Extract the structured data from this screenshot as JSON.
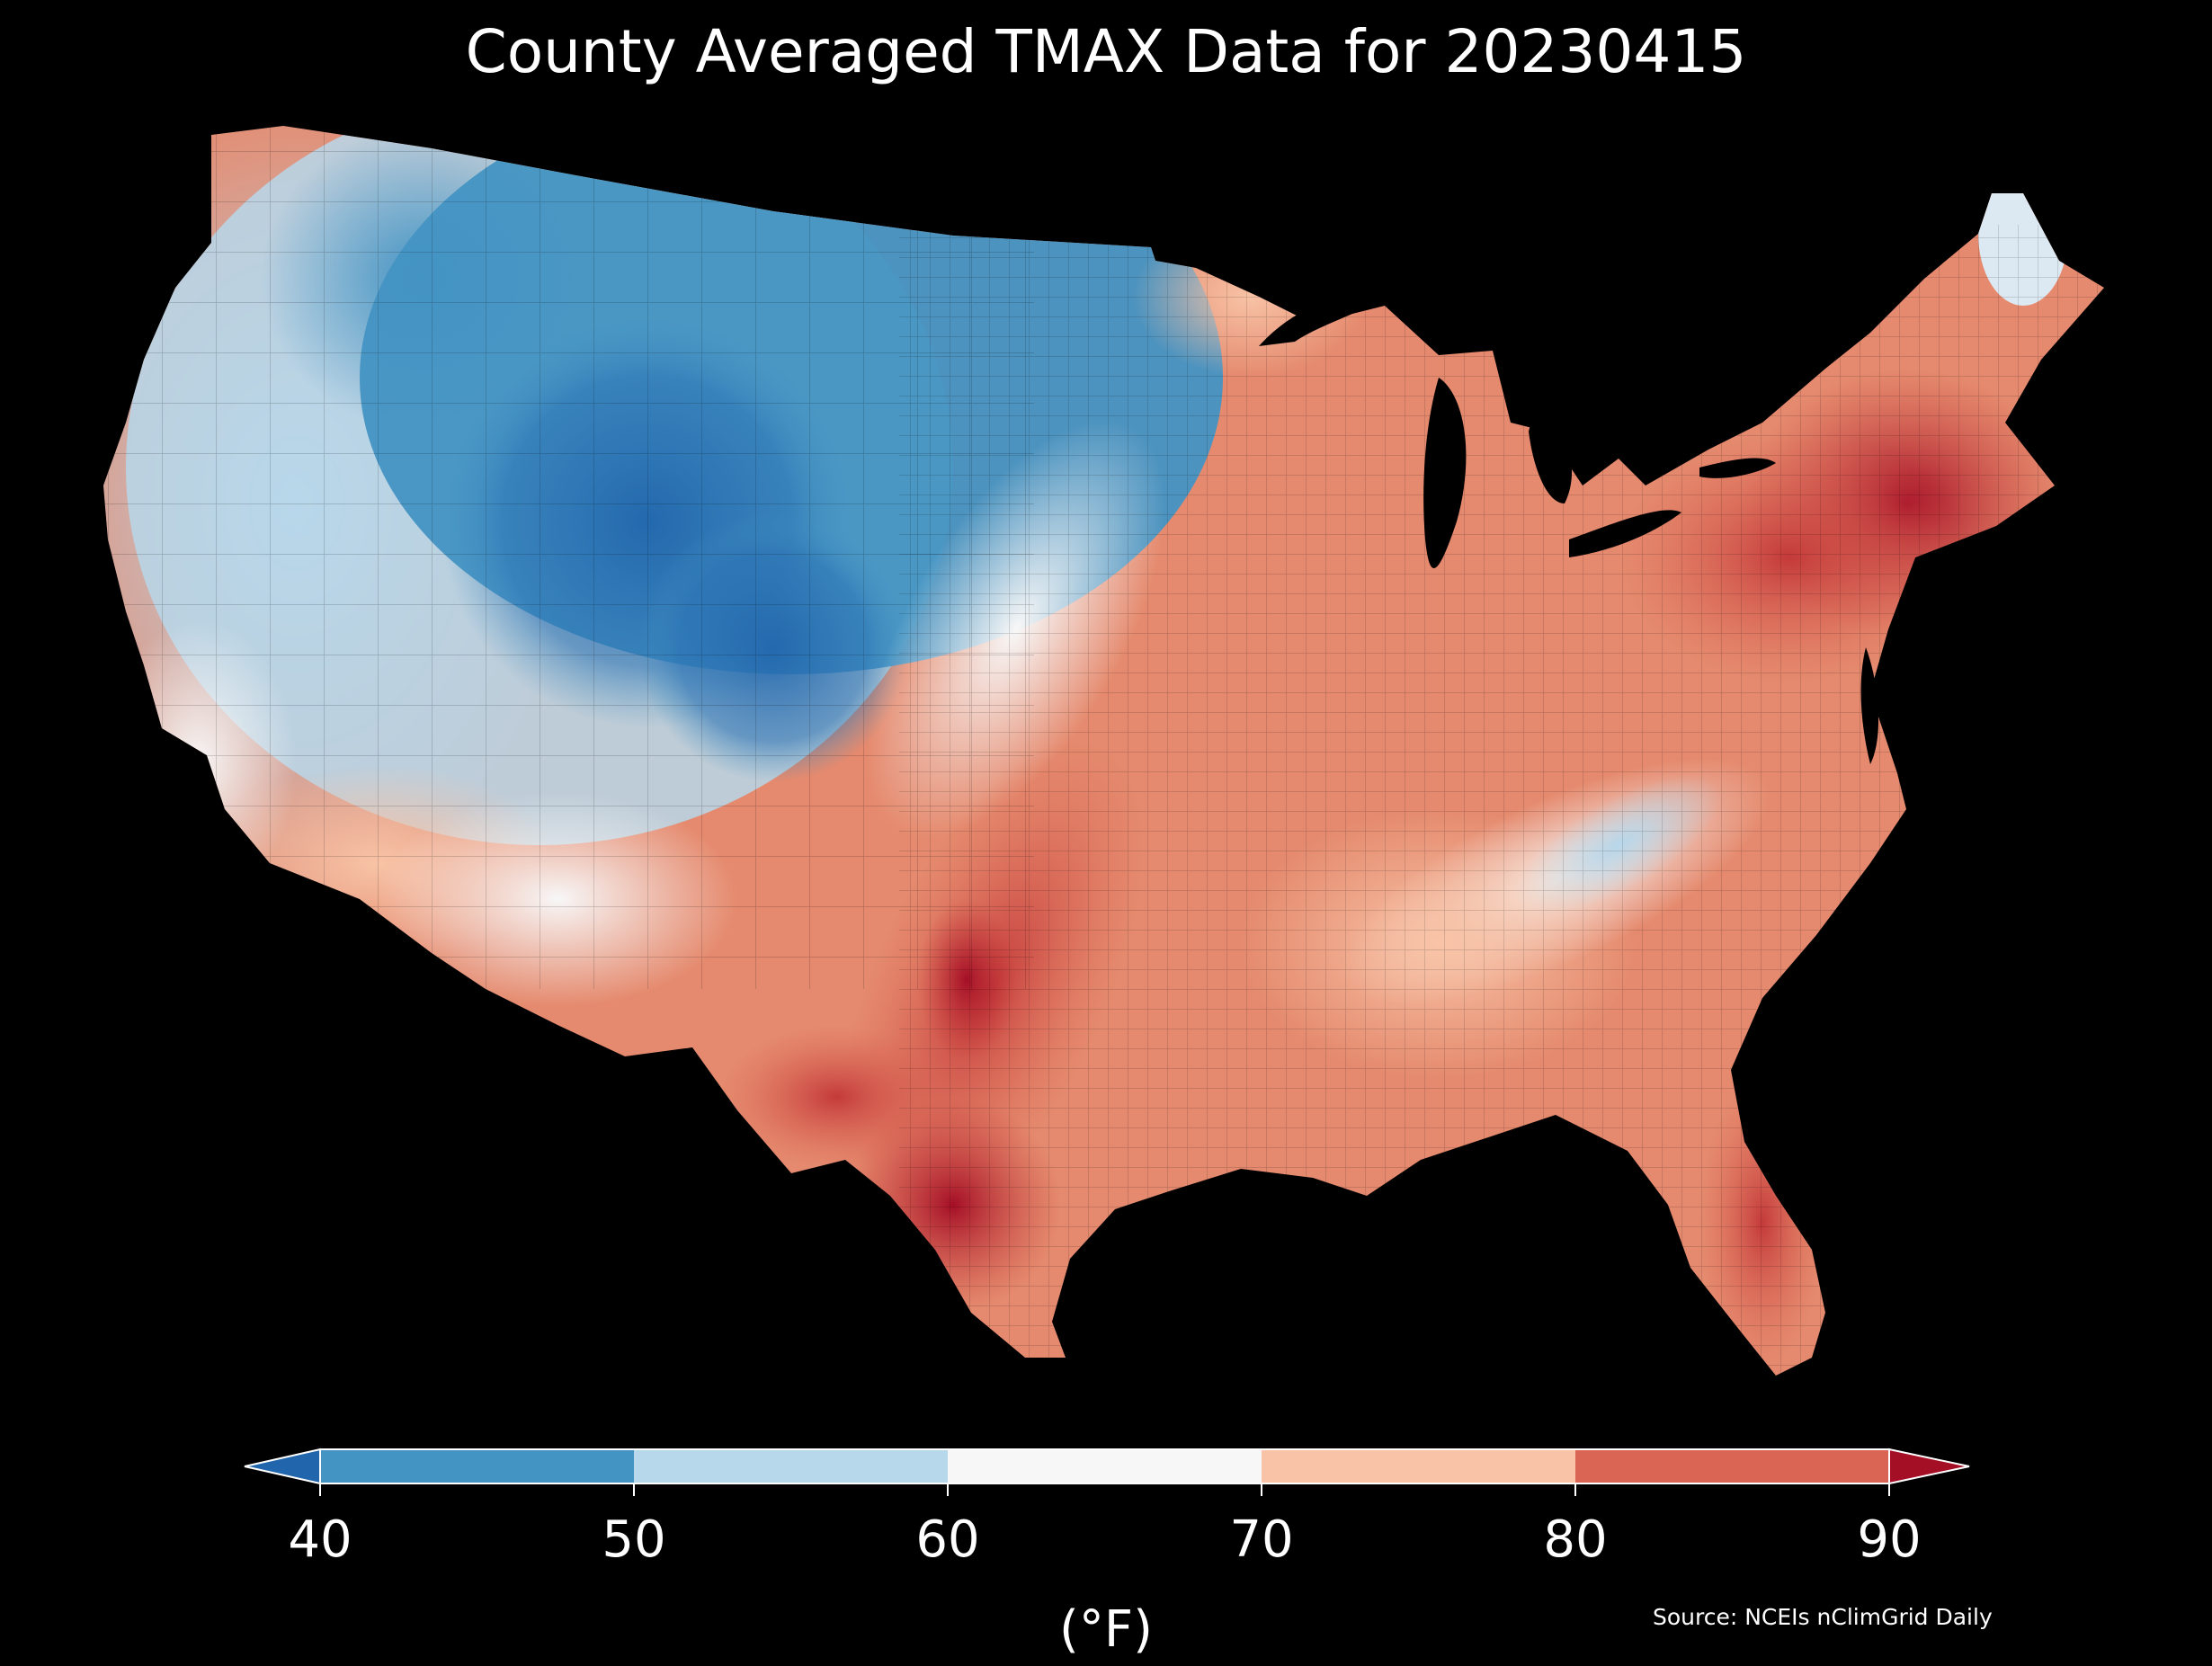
{
  "title": "County Averaged TMAX Data for 20230415",
  "colorbar": {
    "unit_label": "(°F)",
    "ticks": [
      "40",
      "50",
      "60",
      "70",
      "80",
      "90"
    ],
    "bins": [
      {
        "from": 40,
        "to": 50,
        "color": "#4393c3"
      },
      {
        "from": 50,
        "to": 60,
        "color": "#b7d7ea"
      },
      {
        "from": 60,
        "to": 70,
        "color": "#f7f7f7"
      },
      {
        "from": 70,
        "to": 80,
        "color": "#f8c3a6"
      },
      {
        "from": 80,
        "to": 90,
        "color": "#db6554"
      }
    ],
    "under_color": "#2166ac",
    "over_color": "#a50f26",
    "extend": "both"
  },
  "map": {
    "region": "Contiguous United States",
    "unit": "county",
    "variable": "TMAX",
    "pattern": {
      "coldest": "central Rockies / northern Plains (40–50 °F)",
      "cool": "Pacific Northwest and Great Basin (50–60 °F)",
      "warmest": "south-central Plains and south Texas (85–90 °F)",
      "warm": "Northeast / New England (85–90 °F), Florida (80–85 °F)",
      "mild": "Appalachians / Tennessee Valley and far northern Maine (60–70 °F)"
    }
  },
  "source": "Source: NCEIs nClimGrid Daily"
}
